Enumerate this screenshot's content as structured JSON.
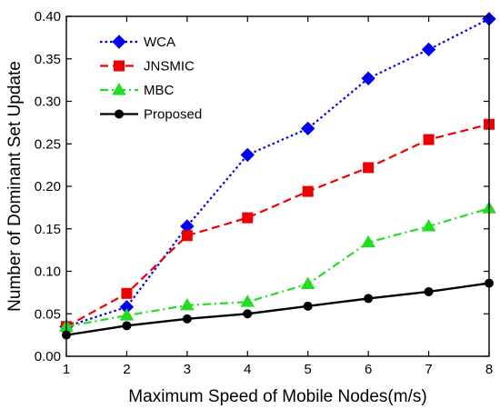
{
  "chart_data": {
    "type": "line",
    "title": "",
    "xlabel": "Maximum Speed of Mobile Nodes(m/s)",
    "ylabel": "Number of Dominant Set Update",
    "xlim": [
      1,
      8
    ],
    "ylim": [
      0.0,
      0.4
    ],
    "x_ticks": [
      1,
      2,
      3,
      4,
      5,
      6,
      7,
      8
    ],
    "x_tick_labels": [
      "1",
      "2",
      "3",
      "4",
      "5",
      "6",
      "7",
      "8"
    ],
    "y_ticks": [
      0.0,
      0.05,
      0.1,
      0.15,
      0.2,
      0.25,
      0.3,
      0.35,
      0.4
    ],
    "y_tick_labels": [
      "0.00",
      "0.05",
      "0.10",
      "0.15",
      "0.20",
      "0.25",
      "0.30",
      "0.35",
      "0.40"
    ],
    "grid": false,
    "legend_position": "top-left",
    "x": [
      1,
      2,
      3,
      4,
      5,
      6,
      7,
      8
    ],
    "series": [
      {
        "name": "WCA",
        "values": [
          0.035,
          0.058,
          0.153,
          0.237,
          0.268,
          0.327,
          0.361,
          0.397
        ],
        "color": "#0000ee",
        "marker": "diamond",
        "dash": "dotted"
      },
      {
        "name": "JNSMIC",
        "values": [
          0.035,
          0.074,
          0.142,
          0.163,
          0.194,
          0.222,
          0.255,
          0.273
        ],
        "color": "#ee0000",
        "marker": "square",
        "dash": "dashed"
      },
      {
        "name": "MBC",
        "values": [
          0.035,
          0.048,
          0.06,
          0.064,
          0.085,
          0.134,
          0.153,
          0.174
        ],
        "color": "#22dd22",
        "marker": "triangle",
        "dash": "dashdot"
      },
      {
        "name": "Proposed",
        "values": [
          0.025,
          0.036,
          0.044,
          0.05,
          0.059,
          0.068,
          0.076,
          0.086
        ],
        "color": "#000000",
        "marker": "circle",
        "dash": "solid"
      }
    ]
  }
}
